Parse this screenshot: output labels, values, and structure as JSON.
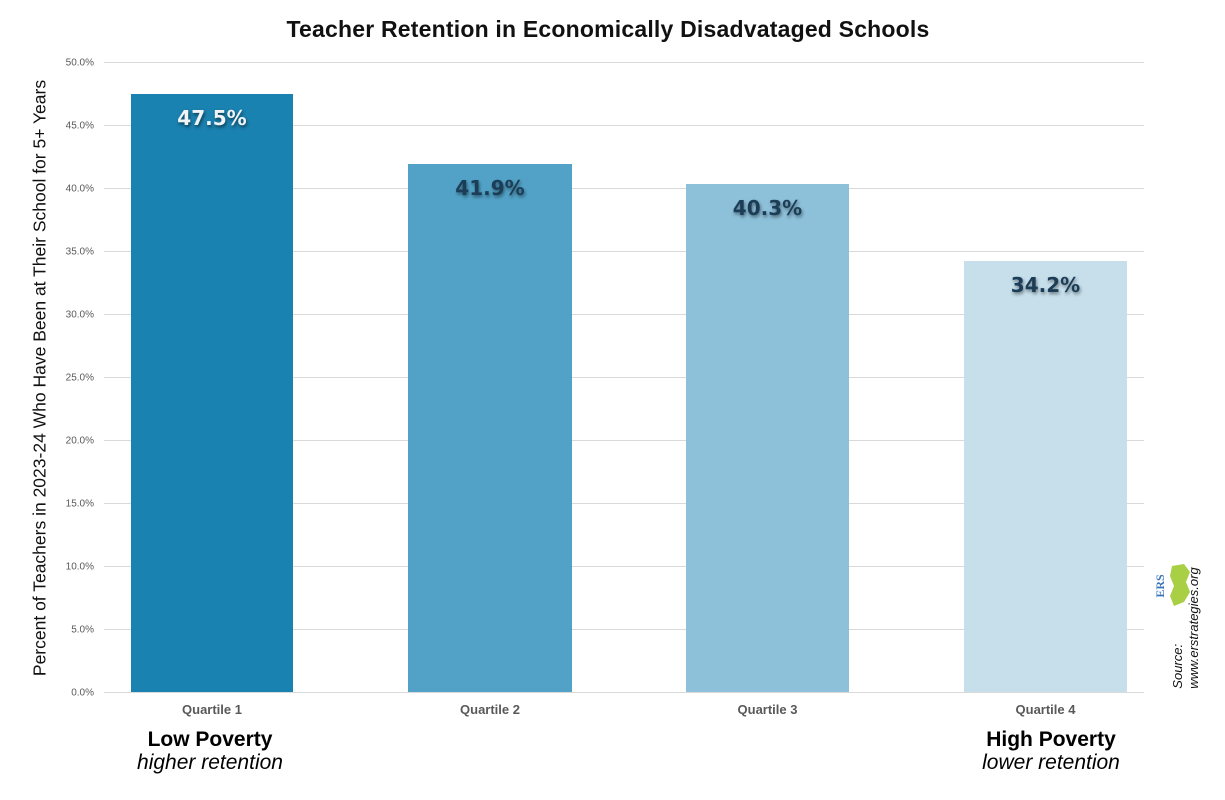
{
  "chart_data": {
    "type": "bar",
    "title": "Teacher Retention in Economically Disadvataged Schools",
    "xlabel": "",
    "ylabel": "Percent of Teachers in 2023-24 Who Have Been at Their School for 5+ Years",
    "categories": [
      "Quartile 1",
      "Quartile 2",
      "Quartile 3",
      "Quartile 4"
    ],
    "values": [
      47.5,
      41.9,
      40.3,
      34.2
    ],
    "value_labels": [
      "47.5%",
      "41.9%",
      "40.3%",
      "34.2%"
    ],
    "ylim": [
      0,
      50
    ],
    "yticks": [
      "0.0%",
      "5.0%",
      "10.0%",
      "15.0%",
      "20.0%",
      "25.0%",
      "30.0%",
      "35.0%",
      "40.0%",
      "45.0%",
      "50.0%"
    ],
    "grid": true,
    "legend": null,
    "bar_colors": [
      "#1a82b0",
      "#52a2c7",
      "#8dc0d9",
      "#c6dfeb"
    ],
    "label_colors": [
      "#f0f4f7",
      "#1c3d57",
      "#1c3d57",
      "#1c3d57"
    ],
    "annotations": [
      {
        "position": "under Quartile 1",
        "title": "Low Poverty",
        "subtitle": "higher retention"
      },
      {
        "position": "under Quartile 4",
        "title": "High Poverty",
        "subtitle": "lower retention"
      }
    ]
  },
  "source": {
    "label": "Source:",
    "url": "www.erstrategies.org",
    "logo_text": "ERS"
  }
}
